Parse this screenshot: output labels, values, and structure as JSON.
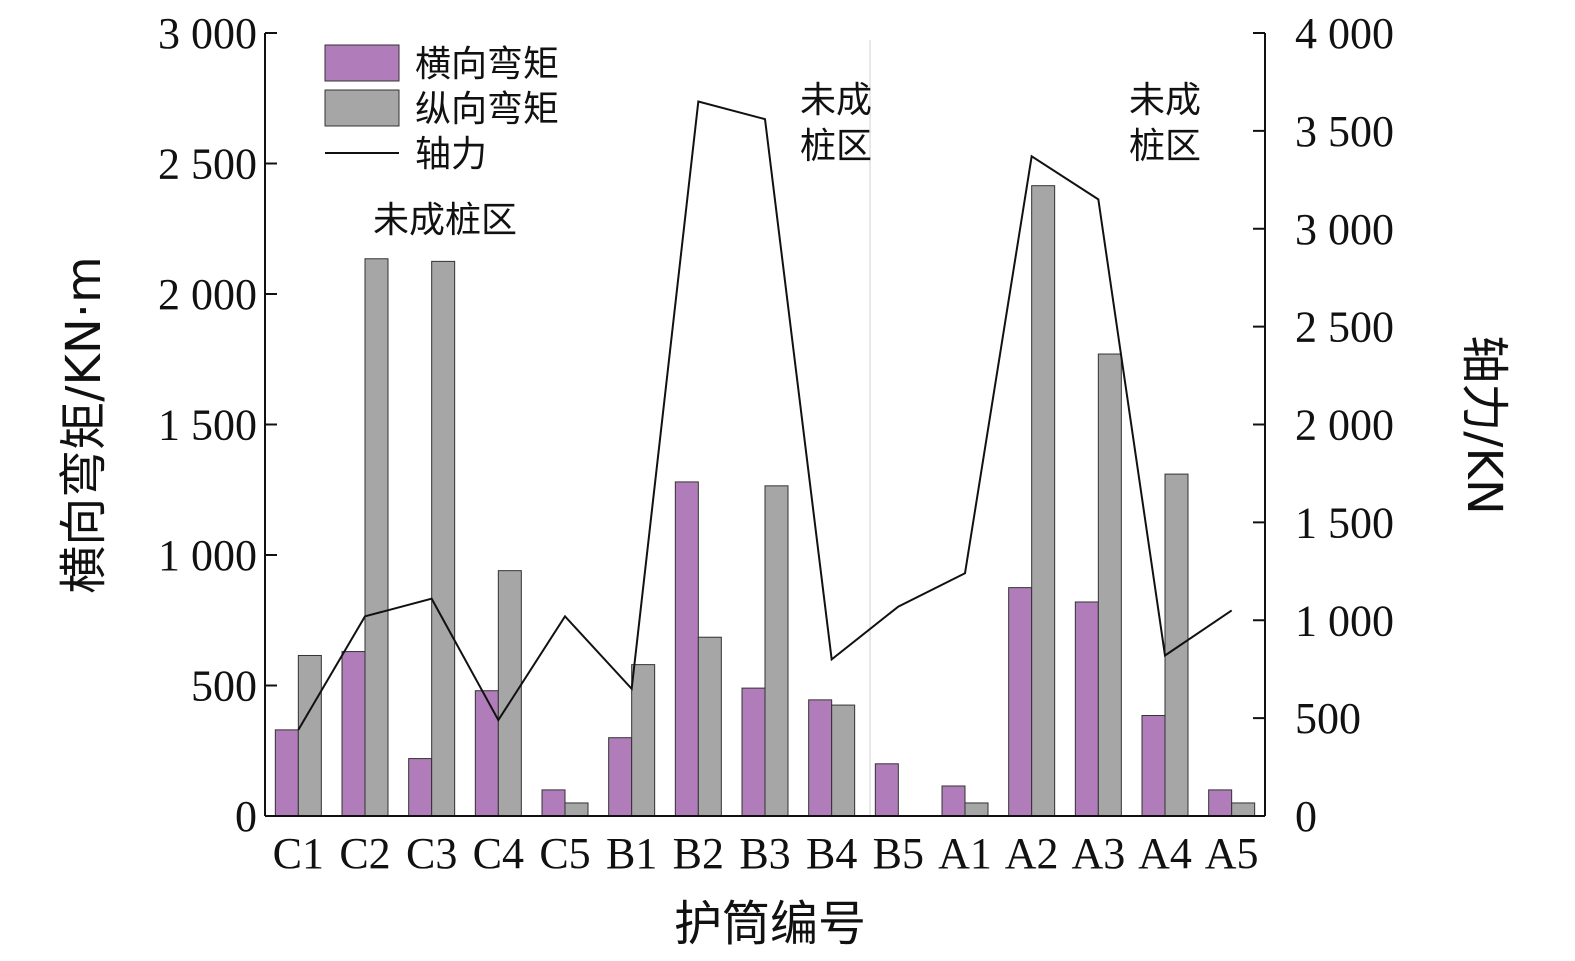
{
  "chart_data": {
    "type": "bar",
    "categories": [
      "C1",
      "C2",
      "C3",
      "C4",
      "C5",
      "B1",
      "B2",
      "B3",
      "B4",
      "B5",
      "A1",
      "A2",
      "A3",
      "A4",
      "A5"
    ],
    "series": [
      {
        "name": "横向弯矩",
        "axis": "left",
        "type": "bar",
        "color": "#b07cba",
        "values": [
          330,
          630,
          220,
          480,
          100,
          300,
          1280,
          490,
          445,
          200,
          115,
          875,
          820,
          385,
          100
        ]
      },
      {
        "name": "纵向弯矩",
        "axis": "left",
        "type": "bar",
        "color": "#a6a6a6",
        "values": [
          615,
          2135,
          2125,
          940,
          50,
          580,
          685,
          1265,
          425,
          0,
          50,
          2415,
          1770,
          1310,
          50
        ]
      },
      {
        "name": "轴力",
        "axis": "right",
        "type": "line",
        "color": "#111111",
        "values": [
          440,
          1020,
          1110,
          490,
          1020,
          650,
          3650,
          3560,
          800,
          1070,
          1240,
          3370,
          3150,
          820,
          1050
        ]
      }
    ],
    "xlabel": "护筒编号",
    "ylabel": "横向弯矩/KN·m",
    "y2label": "轴力/KN",
    "ylim": [
      0,
      3000
    ],
    "y2lim": [
      0,
      4000
    ],
    "yticks": [
      "0",
      "500",
      "1 000",
      "1 500",
      "2 000",
      "2 500",
      "3 000"
    ],
    "y2ticks": [
      "0",
      "500",
      "1 000",
      "1 500",
      "2 000",
      "2 500",
      "3 000",
      "3 500",
      "4 000"
    ],
    "legend_position": "top-left",
    "grid": false,
    "annotations": [
      {
        "lines": [
          "未成桩区"
        ],
        "near": "C2-C3"
      },
      {
        "lines": [
          "未成",
          "桩区"
        ],
        "near": "B4"
      },
      {
        "lines": [
          "未成",
          "桩区"
        ],
        "near": "A4"
      }
    ]
  }
}
